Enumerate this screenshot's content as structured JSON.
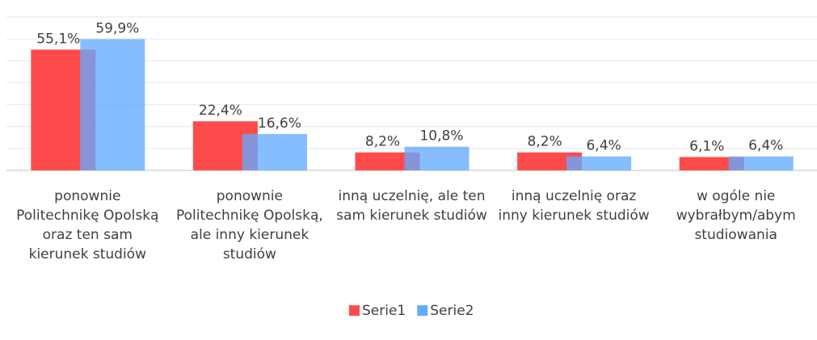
{
  "chart_data": {
    "type": "bar",
    "categories": [
      "ponownie Politechnikę Opolską oraz ten sam kierunek studiów",
      "ponownie Politechnikę Opolską, ale inny kierunek studiów",
      "inną uczelnię, ale ten sam kierunek studiów",
      "inną uczelnię oraz inny kierunek studiów",
      "w ogóle nie wybrałbym/abym studiowania"
    ],
    "series": [
      {
        "name": "Serie1",
        "color": "#ff4b4b",
        "values": [
          55.1,
          22.4,
          8.2,
          8.2,
          6.1
        ],
        "value_labels": [
          "55,1%",
          "22,4%",
          "8,2%",
          "8,2%",
          "6,1%"
        ]
      },
      {
        "name": "Serie2",
        "color": "#64aaff",
        "values": [
          59.9,
          16.6,
          10.8,
          6.4,
          6.4
        ],
        "value_labels": [
          "59,9%",
          "16,6%",
          "10,8%",
          "6,4%",
          "6,4%"
        ]
      }
    ],
    "ylim": [
      0,
      70
    ],
    "yticks": [
      0,
      10,
      20,
      30,
      40,
      50,
      60,
      70
    ],
    "grid": true,
    "legend": "bottom"
  }
}
